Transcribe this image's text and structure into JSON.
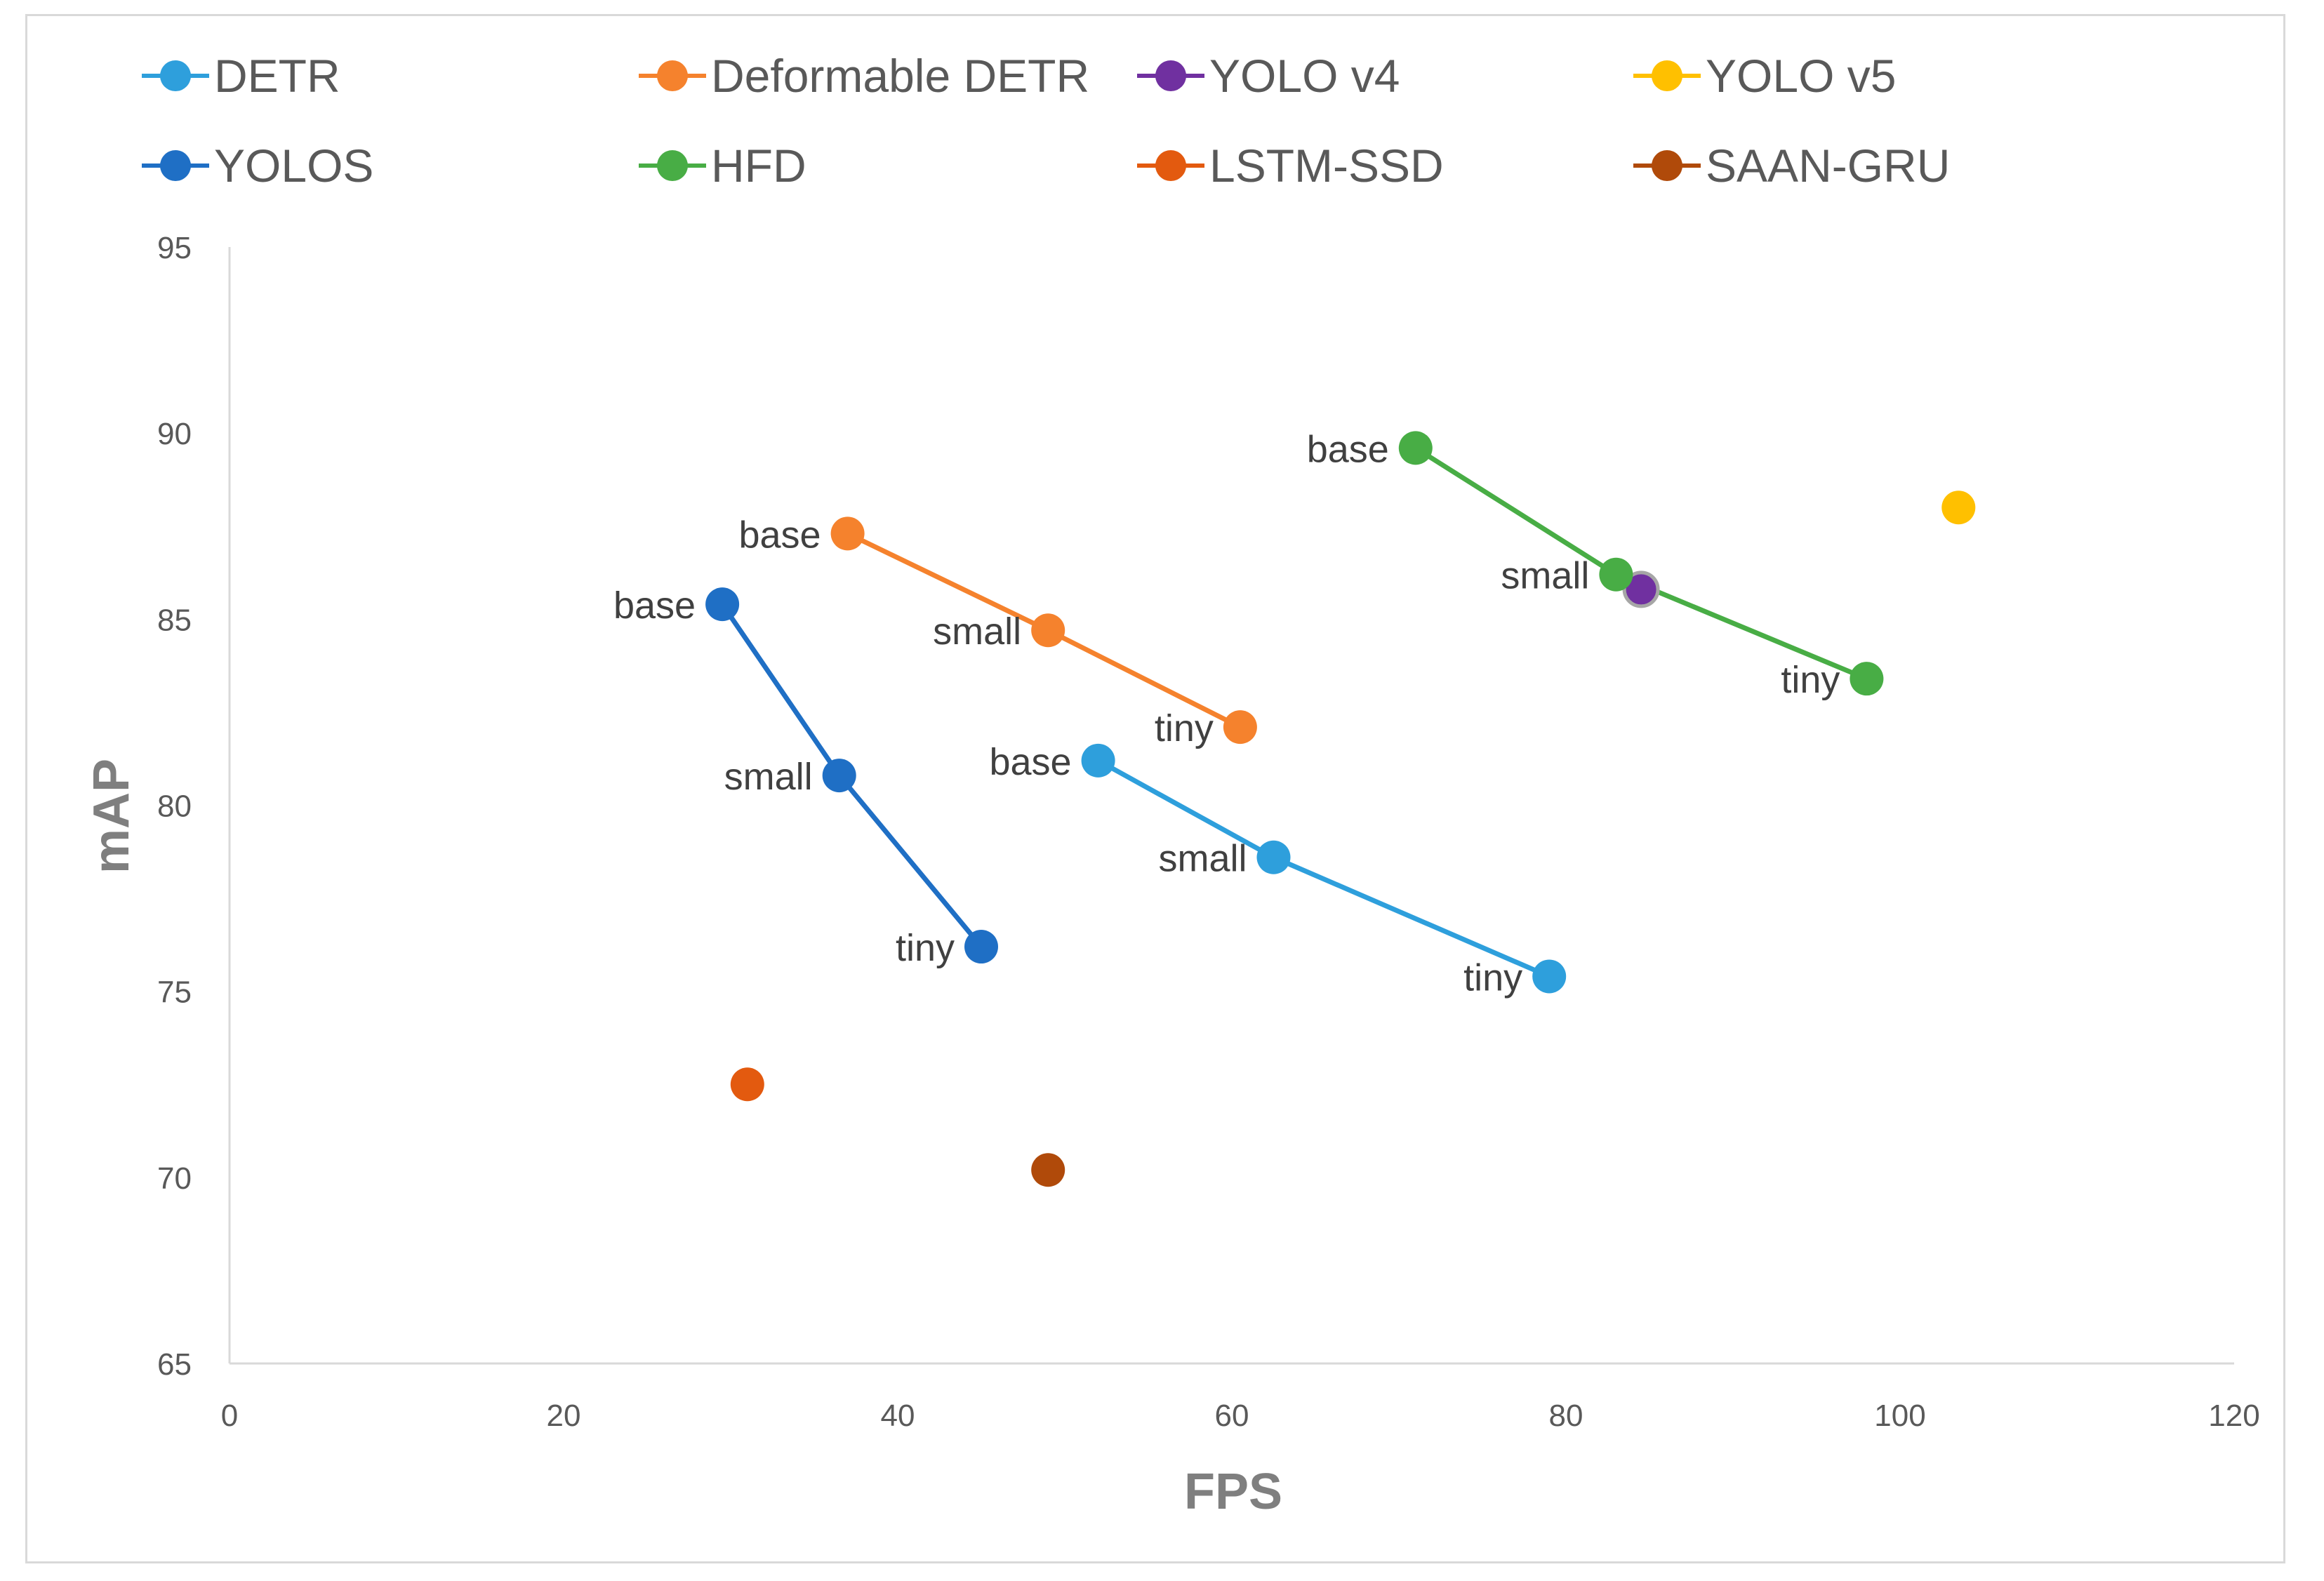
{
  "chart_data": {
    "type": "scatter",
    "xlabel": "FPS",
    "ylabel": "mAP",
    "xlim": [
      0,
      120
    ],
    "ylim": [
      65,
      95
    ],
    "x_ticks": [
      0,
      20,
      40,
      60,
      80,
      100,
      120
    ],
    "y_ticks": [
      65,
      70,
      75,
      80,
      85,
      90,
      95
    ],
    "grid": false,
    "legend_position": "top",
    "series": [
      {
        "name": "DETR",
        "color": "#2e9fdc",
        "line": true,
        "points": [
          {
            "x": 52,
            "y": 81.2,
            "label": "base"
          },
          {
            "x": 62.5,
            "y": 78.6,
            "label": "small"
          },
          {
            "x": 79,
            "y": 75.4,
            "label": "tiny"
          }
        ]
      },
      {
        "name": "Deformable DETR",
        "color": "#f5822d",
        "line": true,
        "points": [
          {
            "x": 37,
            "y": 87.3,
            "label": "base"
          },
          {
            "x": 49,
            "y": 84.7,
            "label": "small"
          },
          {
            "x": 60.5,
            "y": 82.1,
            "label": "tiny"
          }
        ]
      },
      {
        "name": "YOLO v4",
        "color": "#7030a0",
        "line": false,
        "points": [
          {
            "x": 84.5,
            "y": 85.8,
            "label": ""
          }
        ]
      },
      {
        "name": "YOLO v5",
        "color": "#ffc000",
        "line": false,
        "points": [
          {
            "x": 103.5,
            "y": 88.0,
            "label": ""
          }
        ]
      },
      {
        "name": "YOLOS",
        "color": "#1f6fc5",
        "line": true,
        "points": [
          {
            "x": 29.5,
            "y": 85.4,
            "label": "base"
          },
          {
            "x": 36.5,
            "y": 80.8,
            "label": "small"
          },
          {
            "x": 45,
            "y": 76.2,
            "label": "tiny"
          }
        ]
      },
      {
        "name": "HFD",
        "color": "#48ad45",
        "line": true,
        "points": [
          {
            "x": 71,
            "y": 89.6,
            "label": "base"
          },
          {
            "x": 83,
            "y": 86.2,
            "label": "small"
          },
          {
            "x": 98,
            "y": 83.4,
            "label": "tiny"
          }
        ]
      },
      {
        "name": "LSTM-SSD",
        "color": "#e35a0f",
        "line": false,
        "points": [
          {
            "x": 31,
            "y": 72.5,
            "label": ""
          }
        ]
      },
      {
        "name": "SAAN-GRU",
        "color": "#b04a0a",
        "line": false,
        "points": [
          {
            "x": 49,
            "y": 70.2,
            "label": ""
          }
        ]
      }
    ]
  }
}
